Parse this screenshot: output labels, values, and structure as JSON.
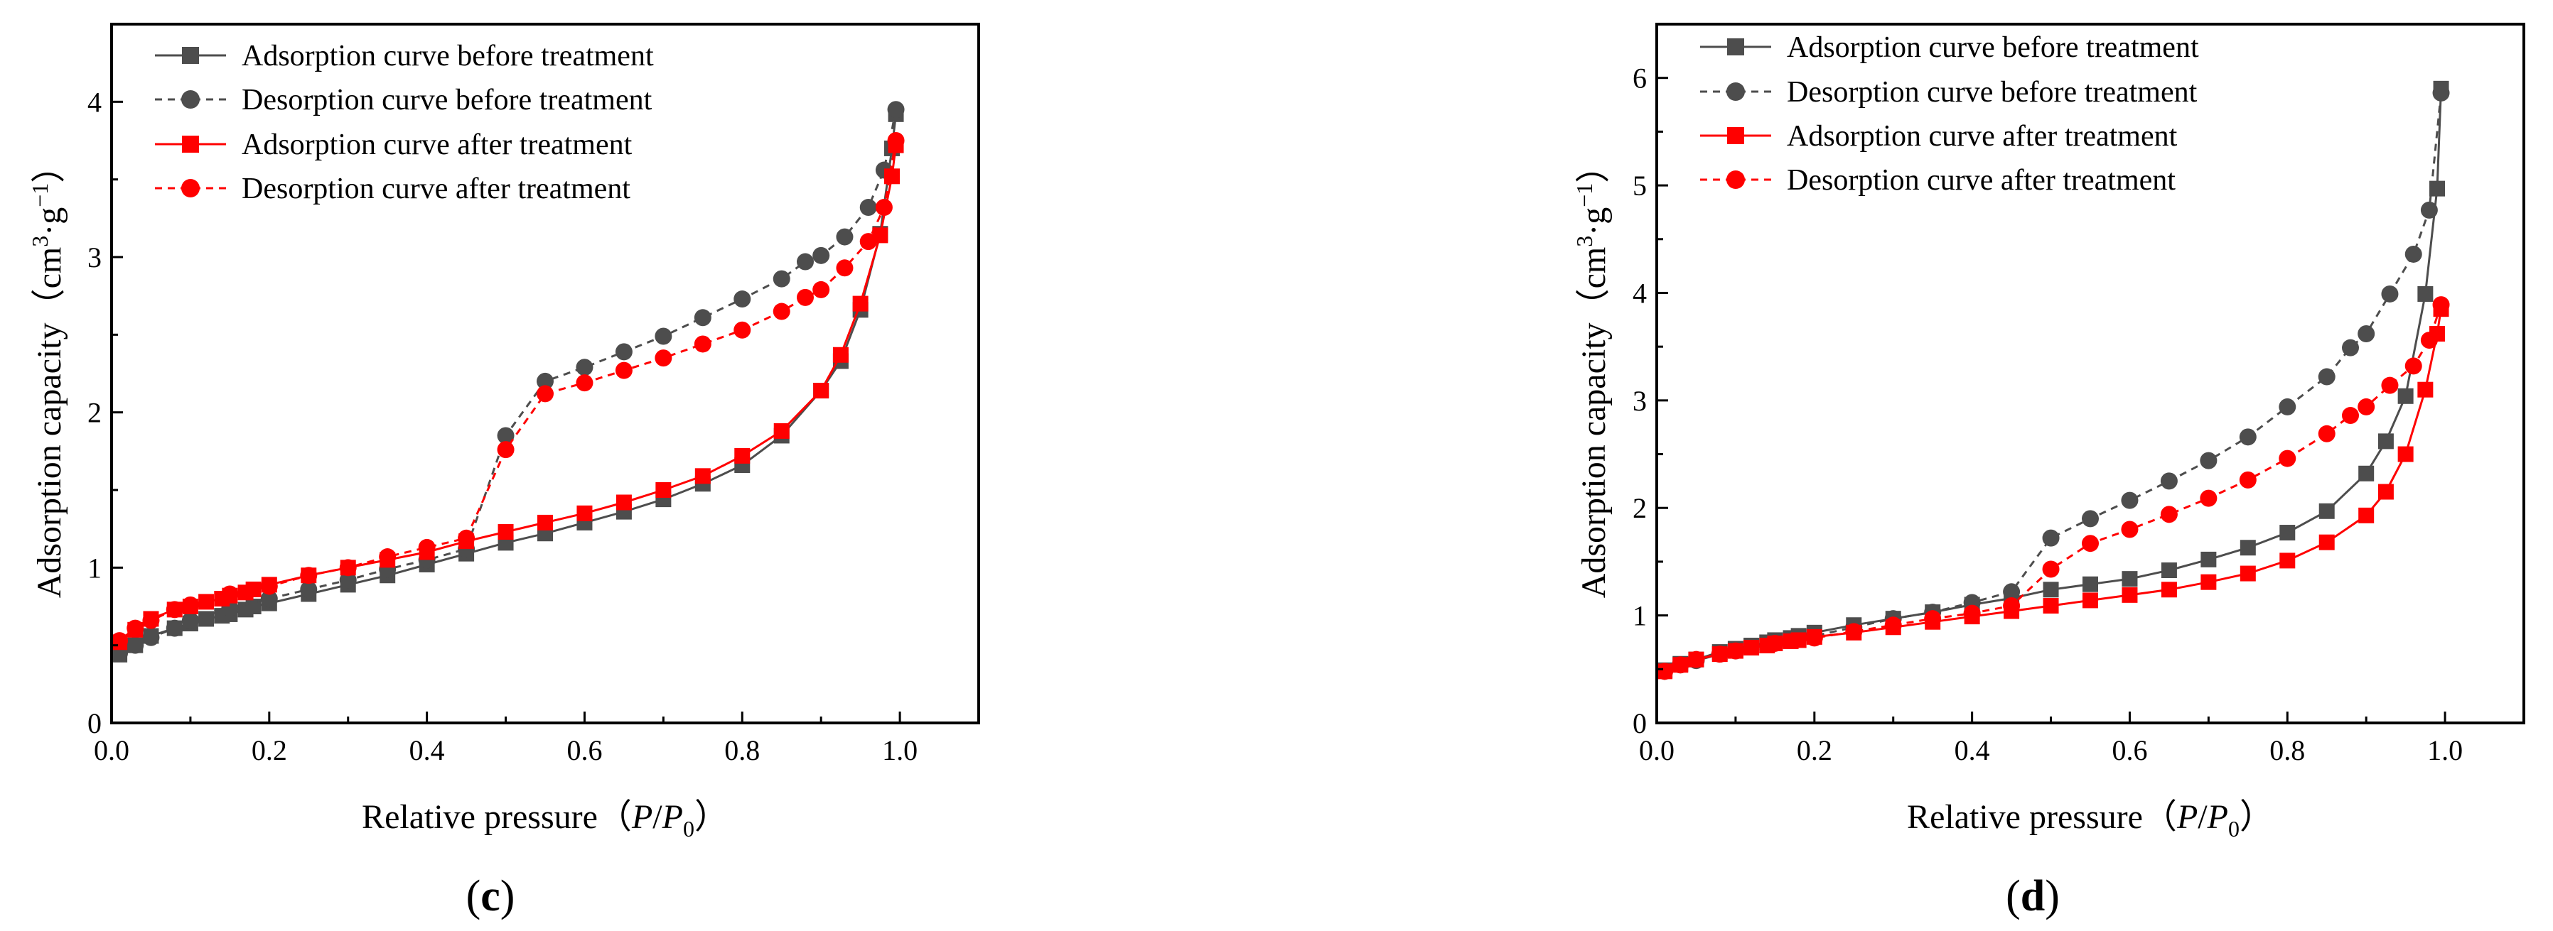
{
  "panels": [
    {
      "label_open": "(",
      "label_letter": "c",
      "label_close": ")"
    },
    {
      "label_open": "(",
      "label_letter": "d",
      "label_close": ")"
    }
  ],
  "axis_labels": {
    "x_text": "Relative pressure",
    "x_paren_open": "（",
    "x_p": "P",
    "x_slash": "/",
    "x_p0": "P",
    "x_p0_sub": "0",
    "x_paren_close": "）",
    "y_text": "Adsorption capacity",
    "y_paren_open": "（",
    "y_cm": "cm",
    "y_cm_sup": "3",
    "y_dot": "·g",
    "y_g_sup": "−1",
    "y_paren_close": "）"
  },
  "colors": {
    "before": "#4d4d4d",
    "after": "#ff0000"
  },
  "chart_data": [
    {
      "type": "line",
      "panel": "c",
      "xlim": [
        0,
        1.1
      ],
      "ylim": [
        0,
        4.5
      ],
      "x_ticks": [
        0.0,
        0.2,
        0.4,
        0.6,
        0.8,
        1.0
      ],
      "x_tick_labels": [
        "0.0",
        "0.2",
        "0.4",
        "0.6",
        "0.8",
        "1.0"
      ],
      "y_ticks": [
        0,
        1,
        2,
        3,
        4
      ],
      "y_tick_labels": [
        "0",
        "1",
        "2",
        "3",
        "4"
      ],
      "legend_position": "top-left",
      "series": [
        {
          "name": "Adsorption curve before treatment",
          "color": "#4d4d4d",
          "marker": "square",
          "dash": "solid",
          "points": [
            [
              0.01,
              0.44
            ],
            [
              0.03,
              0.5
            ],
            [
              0.05,
              0.56
            ],
            [
              0.08,
              0.61
            ],
            [
              0.1,
              0.64
            ],
            [
              0.12,
              0.67
            ],
            [
              0.14,
              0.69
            ],
            [
              0.15,
              0.7
            ],
            [
              0.17,
              0.73
            ],
            [
              0.18,
              0.75
            ],
            [
              0.2,
              0.77
            ],
            [
              0.25,
              0.83
            ],
            [
              0.3,
              0.89
            ],
            [
              0.35,
              0.95
            ],
            [
              0.4,
              1.02
            ],
            [
              0.45,
              1.09
            ],
            [
              0.5,
              1.16
            ],
            [
              0.55,
              1.22
            ],
            [
              0.6,
              1.29
            ],
            [
              0.65,
              1.36
            ],
            [
              0.7,
              1.44
            ],
            [
              0.75,
              1.54
            ],
            [
              0.8,
              1.66
            ],
            [
              0.85,
              1.85
            ],
            [
              0.9,
              2.14
            ],
            [
              0.925,
              2.33
            ],
            [
              0.95,
              2.66
            ],
            [
              0.975,
              3.15
            ],
            [
              0.99,
              3.7
            ],
            [
              0.995,
              3.92
            ]
          ]
        },
        {
          "name": "Desorption curve before treatment",
          "color": "#4d4d4d",
          "marker": "circle",
          "dash": "dashed",
          "points": [
            [
              0.995,
              3.95
            ],
            [
              0.98,
              3.56
            ],
            [
              0.96,
              3.32
            ],
            [
              0.93,
              3.13
            ],
            [
              0.9,
              3.01
            ],
            [
              0.88,
              2.97
            ],
            [
              0.85,
              2.86
            ],
            [
              0.8,
              2.73
            ],
            [
              0.75,
              2.61
            ],
            [
              0.7,
              2.49
            ],
            [
              0.65,
              2.39
            ],
            [
              0.6,
              2.29
            ],
            [
              0.55,
              2.2
            ],
            [
              0.5,
              1.85
            ],
            [
              0.45,
              1.12
            ],
            [
              0.4,
              1.05
            ],
            [
              0.35,
              0.99
            ],
            [
              0.3,
              0.92
            ],
            [
              0.25,
              0.86
            ],
            [
              0.2,
              0.8
            ],
            [
              0.15,
              0.74
            ],
            [
              0.1,
              0.66
            ],
            [
              0.08,
              0.61
            ],
            [
              0.05,
              0.55
            ],
            [
              0.03,
              0.5
            ],
            [
              0.01,
              0.45
            ]
          ]
        },
        {
          "name": "Adsorption curve after treatment",
          "color": "#ff0000",
          "marker": "square",
          "dash": "solid",
          "points": [
            [
              0.01,
              0.52
            ],
            [
              0.03,
              0.6
            ],
            [
              0.05,
              0.67
            ],
            [
              0.08,
              0.73
            ],
            [
              0.1,
              0.75
            ],
            [
              0.12,
              0.78
            ],
            [
              0.14,
              0.8
            ],
            [
              0.15,
              0.82
            ],
            [
              0.17,
              0.84
            ],
            [
              0.18,
              0.86
            ],
            [
              0.2,
              0.89
            ],
            [
              0.25,
              0.95
            ],
            [
              0.3,
              1.0
            ],
            [
              0.35,
              1.05
            ],
            [
              0.4,
              1.1
            ],
            [
              0.45,
              1.17
            ],
            [
              0.5,
              1.23
            ],
            [
              0.55,
              1.29
            ],
            [
              0.6,
              1.35
            ],
            [
              0.65,
              1.42
            ],
            [
              0.7,
              1.5
            ],
            [
              0.75,
              1.59
            ],
            [
              0.8,
              1.72
            ],
            [
              0.85,
              1.88
            ],
            [
              0.9,
              2.14
            ],
            [
              0.925,
              2.37
            ],
            [
              0.95,
              2.7
            ],
            [
              0.975,
              3.14
            ],
            [
              0.99,
              3.52
            ],
            [
              0.995,
              3.72
            ]
          ]
        },
        {
          "name": "Desorption curve after treatment",
          "color": "#ff0000",
          "marker": "circle",
          "dash": "dashed",
          "points": [
            [
              0.995,
              3.75
            ],
            [
              0.98,
              3.32
            ],
            [
              0.96,
              3.1
            ],
            [
              0.93,
              2.93
            ],
            [
              0.9,
              2.79
            ],
            [
              0.88,
              2.74
            ],
            [
              0.85,
              2.65
            ],
            [
              0.8,
              2.53
            ],
            [
              0.75,
              2.44
            ],
            [
              0.7,
              2.35
            ],
            [
              0.65,
              2.27
            ],
            [
              0.6,
              2.19
            ],
            [
              0.55,
              2.12
            ],
            [
              0.5,
              1.76
            ],
            [
              0.45,
              1.19
            ],
            [
              0.4,
              1.13
            ],
            [
              0.35,
              1.07
            ],
            [
              0.3,
              1.0
            ],
            [
              0.25,
              0.95
            ],
            [
              0.2,
              0.88
            ],
            [
              0.15,
              0.83
            ],
            [
              0.1,
              0.76
            ],
            [
              0.08,
              0.73
            ],
            [
              0.05,
              0.66
            ],
            [
              0.03,
              0.61
            ],
            [
              0.01,
              0.53
            ]
          ]
        }
      ]
    },
    {
      "type": "line",
      "panel": "d",
      "xlim": [
        0,
        1.1
      ],
      "ylim": [
        0,
        6.5
      ],
      "x_ticks": [
        0.0,
        0.2,
        0.4,
        0.6,
        0.8,
        1.0
      ],
      "x_tick_labels": [
        "0.0",
        "0.2",
        "0.4",
        "0.6",
        "0.8",
        "1.0"
      ],
      "y_ticks": [
        0,
        1,
        2,
        3,
        4,
        5,
        6
      ],
      "y_tick_labels": [
        "0",
        "1",
        "2",
        "3",
        "4",
        "5",
        "6"
      ],
      "legend_position": "top-left",
      "series": [
        {
          "name": "Adsorption curve before treatment",
          "color": "#4d4d4d",
          "marker": "square",
          "dash": "solid",
          "points": [
            [
              0.01,
              0.49
            ],
            [
              0.03,
              0.55
            ],
            [
              0.05,
              0.59
            ],
            [
              0.08,
              0.66
            ],
            [
              0.1,
              0.69
            ],
            [
              0.12,
              0.72
            ],
            [
              0.14,
              0.75
            ],
            [
              0.15,
              0.77
            ],
            [
              0.17,
              0.79
            ],
            [
              0.18,
              0.81
            ],
            [
              0.2,
              0.84
            ],
            [
              0.25,
              0.91
            ],
            [
              0.3,
              0.97
            ],
            [
              0.35,
              1.03
            ],
            [
              0.4,
              1.1
            ],
            [
              0.45,
              1.16
            ],
            [
              0.5,
              1.24
            ],
            [
              0.55,
              1.29
            ],
            [
              0.6,
              1.34
            ],
            [
              0.65,
              1.42
            ],
            [
              0.7,
              1.52
            ],
            [
              0.75,
              1.63
            ],
            [
              0.8,
              1.77
            ],
            [
              0.85,
              1.97
            ],
            [
              0.9,
              2.32
            ],
            [
              0.925,
              2.62
            ],
            [
              0.95,
              3.04
            ],
            [
              0.975,
              3.99
            ],
            [
              0.99,
              4.97
            ],
            [
              0.995,
              5.9
            ]
          ]
        },
        {
          "name": "Desorption curve before treatment",
          "color": "#4d4d4d",
          "marker": "circle",
          "dash": "dashed",
          "points": [
            [
              0.995,
              5.86
            ],
            [
              0.98,
              4.77
            ],
            [
              0.96,
              4.36
            ],
            [
              0.93,
              3.99
            ],
            [
              0.9,
              3.62
            ],
            [
              0.88,
              3.49
            ],
            [
              0.85,
              3.22
            ],
            [
              0.8,
              2.94
            ],
            [
              0.75,
              2.66
            ],
            [
              0.7,
              2.44
            ],
            [
              0.65,
              2.25
            ],
            [
              0.6,
              2.07
            ],
            [
              0.55,
              1.9
            ],
            [
              0.5,
              1.72
            ],
            [
              0.45,
              1.22
            ],
            [
              0.4,
              1.12
            ],
            [
              0.35,
              1.03
            ],
            [
              0.3,
              0.97
            ],
            [
              0.25,
              0.89
            ],
            [
              0.2,
              0.81
            ],
            [
              0.15,
              0.75
            ],
            [
              0.1,
              0.67
            ],
            [
              0.08,
              0.64
            ],
            [
              0.05,
              0.58
            ],
            [
              0.03,
              0.54
            ],
            [
              0.01,
              0.48
            ]
          ]
        },
        {
          "name": "Adsorption curve after treatment",
          "color": "#ff0000",
          "marker": "square",
          "dash": "solid",
          "points": [
            [
              0.01,
              0.48
            ],
            [
              0.03,
              0.54
            ],
            [
              0.05,
              0.59
            ],
            [
              0.08,
              0.64
            ],
            [
              0.1,
              0.67
            ],
            [
              0.12,
              0.7
            ],
            [
              0.14,
              0.72
            ],
            [
              0.15,
              0.74
            ],
            [
              0.17,
              0.76
            ],
            [
              0.18,
              0.77
            ],
            [
              0.2,
              0.8
            ],
            [
              0.25,
              0.84
            ],
            [
              0.3,
              0.89
            ],
            [
              0.35,
              0.94
            ],
            [
              0.4,
              0.99
            ],
            [
              0.45,
              1.04
            ],
            [
              0.5,
              1.09
            ],
            [
              0.55,
              1.14
            ],
            [
              0.6,
              1.19
            ],
            [
              0.65,
              1.24
            ],
            [
              0.7,
              1.31
            ],
            [
              0.75,
              1.39
            ],
            [
              0.8,
              1.51
            ],
            [
              0.85,
              1.68
            ],
            [
              0.9,
              1.93
            ],
            [
              0.925,
              2.15
            ],
            [
              0.95,
              2.5
            ],
            [
              0.975,
              3.1
            ],
            [
              0.99,
              3.62
            ],
            [
              0.995,
              3.85
            ]
          ]
        },
        {
          "name": "Desorption curve after treatment",
          "color": "#ff0000",
          "marker": "circle",
          "dash": "dashed",
          "points": [
            [
              0.995,
              3.89
            ],
            [
              0.98,
              3.56
            ],
            [
              0.96,
              3.32
            ],
            [
              0.93,
              3.14
            ],
            [
              0.9,
              2.94
            ],
            [
              0.88,
              2.86
            ],
            [
              0.85,
              2.69
            ],
            [
              0.8,
              2.46
            ],
            [
              0.75,
              2.26
            ],
            [
              0.7,
              2.09
            ],
            [
              0.65,
              1.94
            ],
            [
              0.6,
              1.8
            ],
            [
              0.55,
              1.67
            ],
            [
              0.5,
              1.43
            ],
            [
              0.45,
              1.09
            ],
            [
              0.4,
              1.02
            ],
            [
              0.35,
              0.97
            ],
            [
              0.3,
              0.91
            ],
            [
              0.25,
              0.85
            ],
            [
              0.2,
              0.79
            ],
            [
              0.15,
              0.74
            ],
            [
              0.1,
              0.67
            ],
            [
              0.08,
              0.64
            ],
            [
              0.05,
              0.59
            ],
            [
              0.03,
              0.54
            ],
            [
              0.01,
              0.48
            ]
          ]
        }
      ]
    }
  ]
}
